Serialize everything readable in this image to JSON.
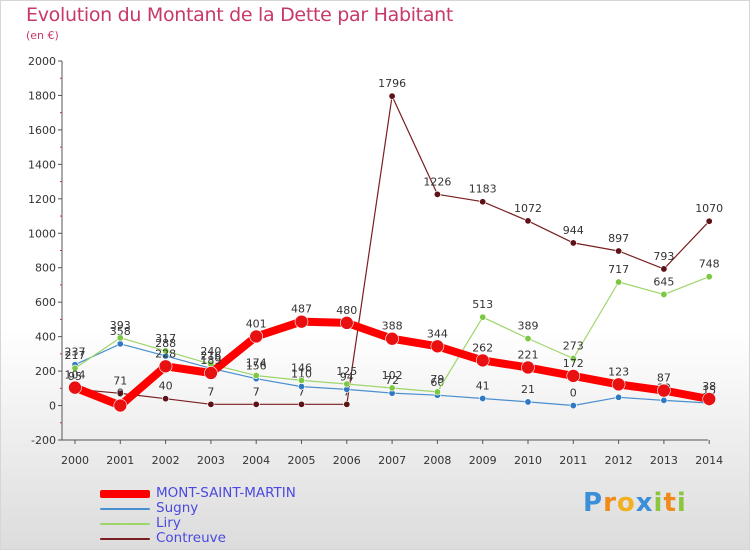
{
  "title": "Evolution du Montant de la Dette par Habitant",
  "subtitle": "(en €)",
  "logo": {
    "letters": [
      "P",
      "r",
      "o",
      "x",
      "i",
      "t",
      "i"
    ],
    "colors": [
      "#3a8fd8",
      "#f08a1a",
      "#f0b020",
      "#3a8fd8",
      "#8cc63f",
      "#f08a1a",
      "#8cc63f"
    ]
  },
  "chart_data": {
    "type": "line",
    "x": [
      "2000",
      "2001",
      "2002",
      "2003",
      "2004",
      "2005",
      "2006",
      "2007",
      "2008",
      "2009",
      "2010",
      "2011",
      "2012",
      "2013",
      "2014"
    ],
    "ylim": [
      -200,
      2000
    ],
    "yticks": [
      "-200",
      "0",
      "200",
      "400",
      "600",
      "800",
      "1000",
      "1200",
      "1400",
      "1600",
      "1800",
      "2000"
    ],
    "grid": false,
    "legend_position": "bottom-left",
    "series": [
      {
        "name": "Contreuve",
        "color": "#7a1e22",
        "dot": "#5c1216",
        "width": 1.2,
        "radius": 3.2,
        "values": [
          95,
          71,
          40,
          7,
          7,
          7,
          7,
          1796,
          1226,
          1183,
          1072,
          944,
          897,
          793,
          1070
        ],
        "labels": [
          "95",
          "71",
          "40",
          "7",
          "7",
          "7",
          "7",
          "1796",
          "1226",
          "1183",
          "1072",
          "944",
          "897",
          "793",
          "1070"
        ]
      },
      {
        "name": "Sugny",
        "color": "#4a8fd0",
        "dot": "#2f78c4",
        "width": 1.2,
        "radius": 3.2,
        "values": [
          237,
          358,
          288,
          216,
          156,
          110,
          94,
          72,
          60,
          41,
          21,
          0,
          48,
          30,
          15
        ],
        "labels": [
          "237",
          "358",
          "288",
          "216",
          "156",
          "110",
          "94",
          "72",
          "60",
          "41",
          "21",
          "0",
          "48",
          "30",
          "15"
        ]
      },
      {
        "name": "Liry",
        "color": "#9dd66a",
        "dot": "#7cc842",
        "width": 1.2,
        "radius": 3.2,
        "values": [
          217,
          393,
          317,
          240,
          174,
          146,
          125,
          102,
          79,
          513,
          389,
          273,
          717,
          645,
          748
        ],
        "labels": [
          "217",
          "393",
          "317",
          "240",
          "174",
          "146",
          "125",
          "102",
          "79",
          "513",
          "389",
          "273",
          "717",
          "645",
          "748"
        ]
      },
      {
        "name": "MONT-SAINT-MARTIN",
        "color": "#ff0000",
        "dot": "#e81010",
        "width": 8,
        "radius": 6.5,
        "values": [
          104,
          0,
          228,
          189,
          401,
          487,
          480,
          388,
          344,
          262,
          221,
          172,
          123,
          87,
          38
        ],
        "labels": [
          "104",
          "0",
          "228",
          "189",
          "401",
          "487",
          "480",
          "388",
          "344",
          "262",
          "221",
          "172",
          "123",
          "87",
          "38"
        ]
      }
    ]
  }
}
